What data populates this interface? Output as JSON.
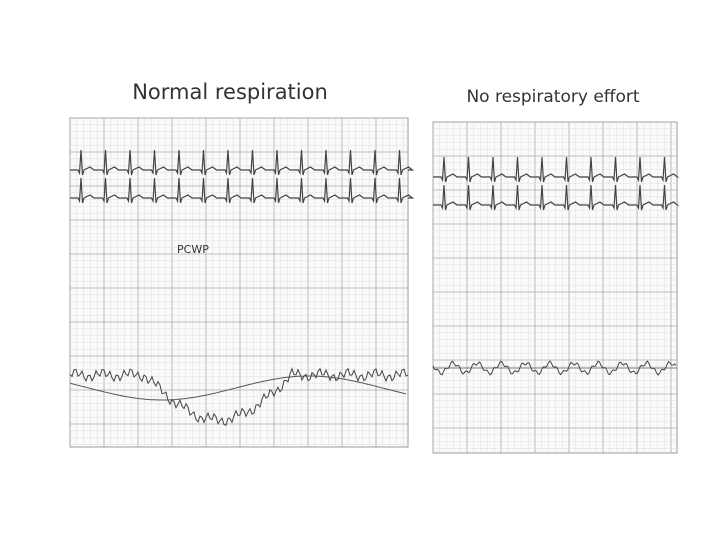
{
  "panels": [
    {
      "title": "Normal respiration",
      "label": "PCWP"
    },
    {
      "title": "No respiratory effort"
    }
  ]
}
